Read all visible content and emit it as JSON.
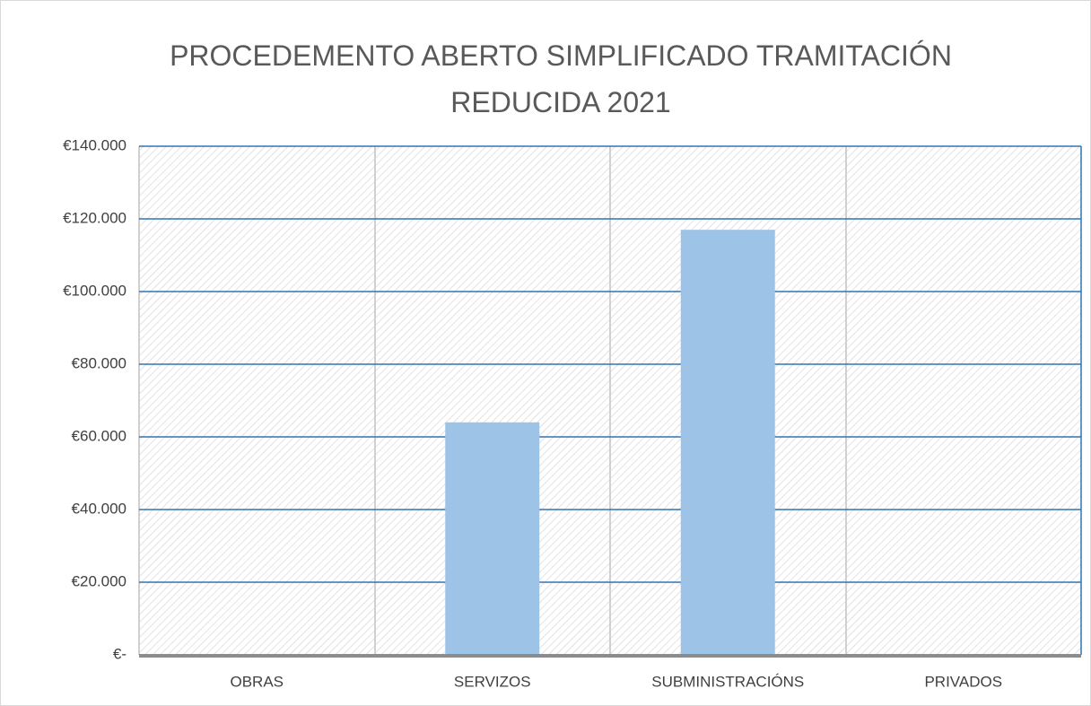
{
  "chart_data": {
    "type": "bar",
    "title": "PROCEDEMENTO ABERTO SIMPLIFICADO TRAMITACIÓN REDUCIDA 2021",
    "categories": [
      "OBRAS",
      "SERVIZOS",
      "SUBMINISTRACIÓNS",
      "PRIVADOS"
    ],
    "values": [
      0,
      64000,
      117000,
      0
    ],
    "color": "#9dc3e6",
    "ylim": [
      0,
      140000
    ],
    "yticks": [
      {
        "value": 0,
        "label": "€-"
      },
      {
        "value": 20000,
        "label": "€20.000"
      },
      {
        "value": 40000,
        "label": "€40.000"
      },
      {
        "value": 60000,
        "label": "€60.000"
      },
      {
        "value": 80000,
        "label": "€80.000"
      },
      {
        "value": 100000,
        "label": "€100.000"
      },
      {
        "value": 120000,
        "label": "€120.000"
      },
      {
        "value": 140000,
        "label": "€140.000"
      }
    ],
    "grid": true
  }
}
